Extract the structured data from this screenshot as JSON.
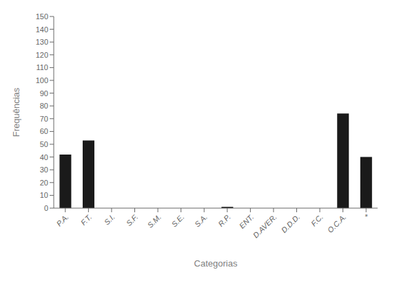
{
  "chart_data": {
    "type": "bar",
    "categories": [
      "P.A.",
      "F.T.",
      "S.I.",
      "S.F.",
      "S.M.",
      "S.E.",
      "S.A.",
      "R.P.",
      "ENT.",
      "D.AVER.",
      "D.D.D.",
      "F.C.",
      "O.C.A.",
      "*"
    ],
    "values": [
      42,
      53,
      0,
      0,
      0,
      0,
      0,
      1,
      0,
      0,
      0,
      0,
      74,
      40
    ],
    "color": "#1a1a1a",
    "xlabel": "Categorias",
    "ylabel": "Frequências",
    "ylim": [
      0,
      150
    ],
    "yticks": [
      0,
      10,
      20,
      30,
      40,
      50,
      60,
      70,
      80,
      90,
      100,
      110,
      120,
      130,
      140,
      150
    ],
    "grid": false
  }
}
